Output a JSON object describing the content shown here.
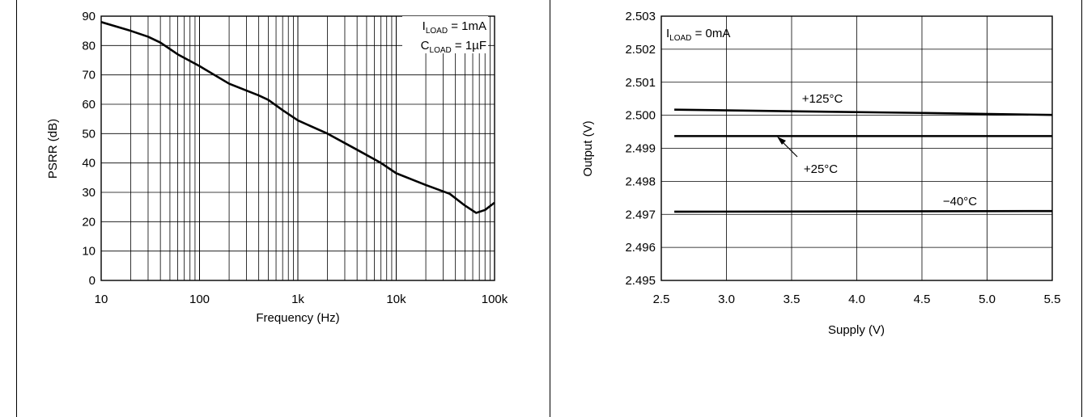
{
  "chart_data": [
    {
      "type": "line",
      "xscale": "log",
      "x_ticks": [
        10,
        100,
        1000,
        10000,
        100000
      ],
      "x_tick_labels": [
        "10",
        "100",
        "1k",
        "10k",
        "100k"
      ],
      "y_ticks": [
        0,
        10,
        20,
        30,
        40,
        50,
        60,
        70,
        80,
        90
      ],
      "y_tick_labels": [
        "0",
        "10",
        "20",
        "30",
        "40",
        "50",
        "60",
        "70",
        "80",
        "90"
      ],
      "xlim": [
        10,
        100000
      ],
      "ylim": [
        0,
        90
      ],
      "xlabel": "Frequency (Hz)",
      "ylabel": "PSRR (dB)",
      "grid": true,
      "annotation": {
        "line1": {
          "main": "I",
          "sub": "LOAD",
          "rest": " = 1mA"
        },
        "line2": {
          "main": "C",
          "sub": "LOAD",
          "rest": " = 1µF"
        }
      },
      "series": [
        {
          "x": [
            10,
            20,
            30,
            40,
            60,
            100,
            200,
            400,
            500,
            700,
            1000,
            2000,
            4000,
            7000,
            10000,
            20000,
            35000,
            50000,
            65000,
            80000,
            100000
          ],
          "y": [
            88,
            85,
            83,
            81,
            77,
            73,
            67,
            63,
            61.5,
            58,
            54.5,
            50,
            44.5,
            40,
            36.5,
            32.5,
            29.5,
            25.5,
            23,
            24,
            26.5
          ]
        }
      ]
    },
    {
      "type": "line",
      "x_ticks": [
        2.5,
        3.0,
        3.5,
        4.0,
        4.5,
        5.0,
        5.5
      ],
      "x_tick_labels": [
        "2.5",
        "3.0",
        "3.5",
        "4.0",
        "4.5",
        "5.0",
        "5.5"
      ],
      "y_ticks": [
        2.495,
        2.496,
        2.497,
        2.498,
        2.499,
        2.5,
        2.501,
        2.502,
        2.503
      ],
      "y_tick_labels": [
        "2.495",
        "2.496",
        "2.497",
        "2.498",
        "2.499",
        "2.500",
        "2.501",
        "2.502",
        "2.503"
      ],
      "xlim": [
        2.5,
        5.5
      ],
      "ylim": [
        2.495,
        2.503
      ],
      "xlabel": "Supply (V)",
      "ylabel": "Output (V)",
      "grid": true,
      "annotation": {
        "main": "I",
        "sub": "LOAD",
        "rest": " = 0mA"
      },
      "series": [
        {
          "name": "+125°C",
          "x": [
            2.6,
            3.5,
            4.5,
            5.5
          ],
          "y": [
            2.50017,
            2.50012,
            2.50007,
            2.50001
          ]
        },
        {
          "name": "+25°C",
          "x": [
            2.6,
            4.0,
            5.5
          ],
          "y": [
            2.49937,
            2.49937,
            2.49937
          ]
        },
        {
          "name": "−40°C",
          "x": [
            2.6,
            4.0,
            5.5
          ],
          "y": [
            2.49708,
            2.49709,
            2.4971
          ]
        }
      ]
    }
  ]
}
